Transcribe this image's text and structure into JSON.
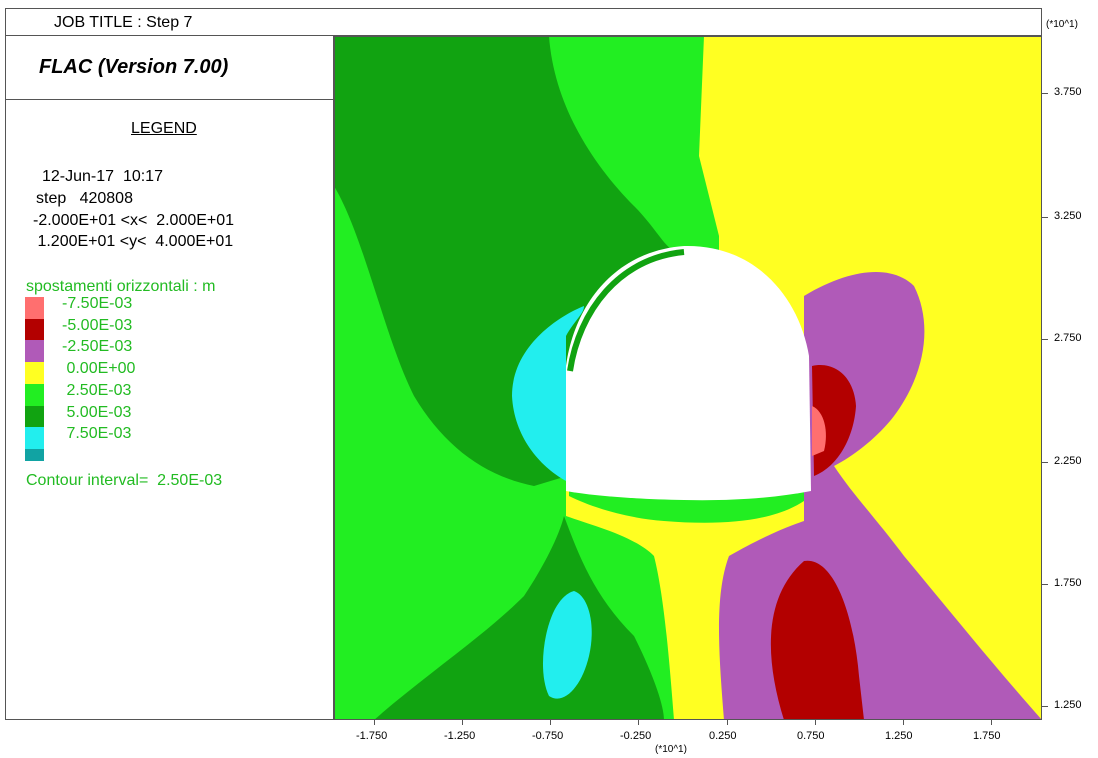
{
  "job_title": "JOB TITLE : Step 7",
  "software": "FLAC (Version 7.00)",
  "legend": {
    "title": "LEGEND",
    "date": "12-Jun-17  10:17",
    "step": "step   420808",
    "x_range": "-2.000E+01 <x<  2.000E+01",
    "y_range": " 1.200E+01 <y<  4.000E+01",
    "contour_title": "spostamenti orizzontali : m",
    "entries": [
      {
        "label": "-7.50E-03",
        "color": "#ff6f6f"
      },
      {
        "label": "-5.00E-03",
        "color": "#b30000"
      },
      {
        "label": "-2.50E-03",
        "color": "#b05ab8"
      },
      {
        "label": " 0.00E+00",
        "color": "#ffff22"
      },
      {
        "label": " 2.50E-03",
        "color": "#22ee22"
      },
      {
        "label": " 5.00E-03",
        "color": "#11a311"
      },
      {
        "label": " 7.50E-03",
        "color": "#22eeee"
      }
    ],
    "extra_swatch_color": "#11a3a3",
    "contour_interval": "Contour interval=  2.50E-03"
  },
  "axes": {
    "y_exponent": "(*10^1)",
    "x_exponent": "(*10^1)",
    "y_ticks": [
      "3.750",
      "3.250",
      "2.750",
      "2.250",
      "1.750",
      "1.250"
    ],
    "x_ticks": [
      "-1.750",
      "-1.250",
      "-0.750",
      "-0.250",
      "0.250",
      "0.750",
      "1.250",
      "1.750"
    ]
  }
}
